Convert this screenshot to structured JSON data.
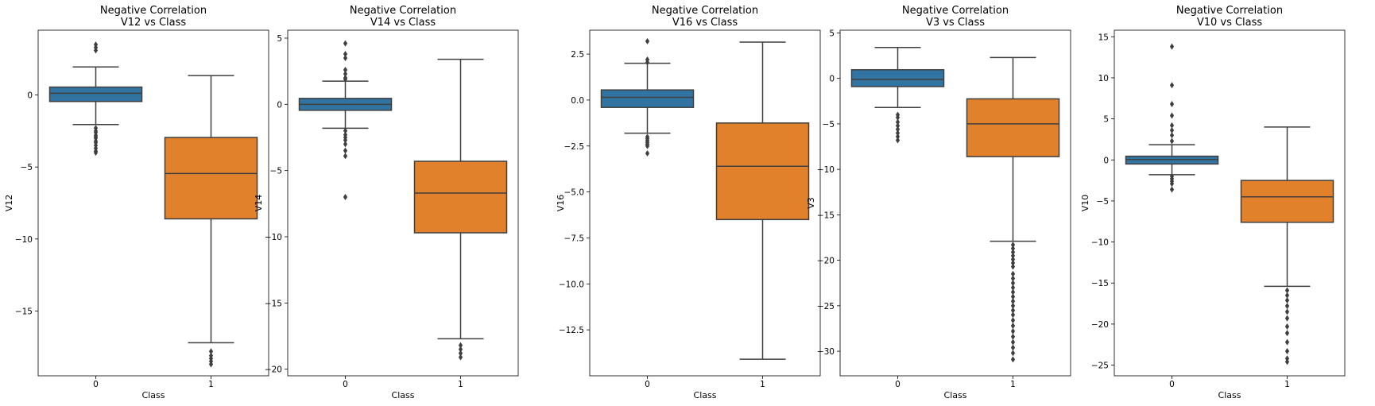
{
  "chart_data": [
    {
      "type": "box",
      "title": [
        "Negative Correlation",
        "V12 vs Class"
      ],
      "xlabel": "Class",
      "ylabel": "V12",
      "categories": [
        "0",
        "1"
      ],
      "ylim": [
        -19.5,
        4.5
      ],
      "yticks": [
        {
          "v": 0,
          "label": "0"
        },
        {
          "v": -5,
          "label": "−5"
        },
        {
          "v": -10,
          "label": "−10"
        },
        {
          "v": -15,
          "label": "−15"
        }
      ],
      "boxes": [
        {
          "category": "0",
          "color": "#3274a1",
          "whisker_low": -2.05,
          "q1": -0.45,
          "median": 0.12,
          "q3": 0.55,
          "whisker_high": 1.95,
          "outliers": [
            3.5,
            3.3,
            3.1,
            -2.3,
            -2.5,
            -2.6,
            -2.8,
            -2.9,
            -3.0,
            -3.2,
            -3.3,
            -3.5,
            -3.7,
            -3.9,
            -4.0
          ]
        },
        {
          "category": "1",
          "color": "#e1812c",
          "whisker_low": -17.2,
          "q1": -8.6,
          "median": -5.45,
          "q3": -2.95,
          "whisker_high": 1.35,
          "outliers": [
            -17.8,
            -18.1,
            -18.3,
            -18.5,
            -18.7
          ]
        }
      ]
    },
    {
      "type": "box",
      "title": [
        "Negative Correlation",
        "V14 vs Class"
      ],
      "xlabel": "Class",
      "ylabel": "V14",
      "categories": [
        "0",
        "1"
      ],
      "ylim": [
        -20.5,
        5.6
      ],
      "yticks": [
        {
          "v": 5,
          "label": "5"
        },
        {
          "v": 0,
          "label": "0"
        },
        {
          "v": -5,
          "label": "−5"
        },
        {
          "v": -10,
          "label": "−10"
        },
        {
          "v": -15,
          "label": "−15"
        },
        {
          "v": -20,
          "label": "−20"
        }
      ],
      "boxes": [
        {
          "category": "0",
          "color": "#3274a1",
          "whisker_low": -1.8,
          "q1": -0.45,
          "median": 0.0,
          "q3": 0.45,
          "whisker_high": 1.75,
          "outliers": [
            4.6,
            3.8,
            3.5,
            2.6,
            2.3,
            2.0,
            1.9,
            -2.0,
            -2.3,
            -2.5,
            -2.7,
            -3.0,
            -3.5,
            -3.9,
            -7.0
          ]
        },
        {
          "category": "1",
          "color": "#e1812c",
          "whisker_low": -17.7,
          "q1": -9.7,
          "median": -6.7,
          "q3": -4.3,
          "whisker_high": 3.4,
          "outliers": [
            -18.2,
            -18.5,
            -18.8,
            -19.1
          ]
        }
      ]
    },
    {
      "type": "box",
      "title": [
        "Negative Correlation",
        "V16 vs Class"
      ],
      "xlabel": "Class",
      "ylabel": "V16",
      "categories": [
        "0",
        "1"
      ],
      "ylim": [
        -15.0,
        3.8
      ],
      "yticks": [
        {
          "v": 2.5,
          "label": "2.5"
        },
        {
          "v": 0,
          "label": "0.0"
        },
        {
          "v": -2.5,
          "label": "−2.5"
        },
        {
          "v": -5,
          "label": "−5.0"
        },
        {
          "v": -7.5,
          "label": "−7.5"
        },
        {
          "v": -10,
          "label": "−10.0"
        },
        {
          "v": -12.5,
          "label": "−12.5"
        }
      ],
      "boxes": [
        {
          "category": "0",
          "color": "#3274a1",
          "whisker_low": -1.8,
          "q1": -0.4,
          "median": 0.15,
          "q3": 0.55,
          "whisker_high": 2.0,
          "outliers": [
            3.2,
            2.2,
            2.05,
            -2.0,
            -2.1,
            -2.2,
            -2.3,
            -2.4,
            -2.5,
            -2.9
          ]
        },
        {
          "category": "1",
          "color": "#e1812c",
          "whisker_low": -14.1,
          "q1": -6.5,
          "median": -3.6,
          "q3": -1.25,
          "whisker_high": 3.15,
          "outliers": []
        }
      ]
    },
    {
      "type": "box",
      "title": [
        "Negative Correlation",
        "V3 vs Class"
      ],
      "xlabel": "Class",
      "ylabel": "V3",
      "categories": [
        "0",
        "1"
      ],
      "ylim": [
        -32.7,
        5.3
      ],
      "yticks": [
        {
          "v": 5,
          "label": "5"
        },
        {
          "v": 0,
          "label": "0"
        },
        {
          "v": -5,
          "label": "−5"
        },
        {
          "v": -10,
          "label": "−10"
        },
        {
          "v": -15,
          "label": "−15"
        },
        {
          "v": -20,
          "label": "−20"
        },
        {
          "v": -25,
          "label": "−25"
        },
        {
          "v": -30,
          "label": "−30"
        }
      ],
      "boxes": [
        {
          "category": "0",
          "color": "#3274a1",
          "whisker_low": -3.2,
          "q1": -0.9,
          "median": -0.1,
          "q3": 0.95,
          "whisker_high": 3.4,
          "outliers": [
            -4.0,
            -4.3,
            -4.8,
            -5.2,
            -5.6,
            -6.0,
            -6.4,
            -6.8
          ]
        },
        {
          "category": "1",
          "color": "#e1812c",
          "whisker_low": -17.9,
          "q1": -8.6,
          "median": -5.0,
          "q3": -2.25,
          "whisker_high": 2.3,
          "outliers": [
            -18.3,
            -18.7,
            -19.1,
            -19.5,
            -19.9,
            -20.3,
            -20.7,
            -21.5,
            -22.0,
            -22.5,
            -23.0,
            -23.5,
            -24.0,
            -24.5,
            -25.0,
            -25.5,
            -26.0,
            -26.6,
            -27.2,
            -27.8,
            -28.4,
            -29.0,
            -29.6,
            -30.2,
            -30.9
          ]
        }
      ]
    },
    {
      "type": "box",
      "title": [
        "Negative Correlation",
        "V10 vs Class"
      ],
      "xlabel": "Class",
      "ylabel": "V10",
      "categories": [
        "0",
        "1"
      ],
      "ylim": [
        -26.3,
        15.8
      ],
      "yticks": [
        {
          "v": 15,
          "label": "15"
        },
        {
          "v": 10,
          "label": "10"
        },
        {
          "v": 5,
          "label": "5"
        },
        {
          "v": 0,
          "label": "0"
        },
        {
          "v": -5,
          "label": "−5"
        },
        {
          "v": -10,
          "label": "−10"
        },
        {
          "v": -15,
          "label": "−15"
        },
        {
          "v": -20,
          "label": "−20"
        },
        {
          "v": -25,
          "label": "−25"
        }
      ],
      "boxes": [
        {
          "category": "0",
          "color": "#3274a1",
          "whisker_low": -1.8,
          "q1": -0.5,
          "median": 0.05,
          "q3": 0.45,
          "whisker_high": 1.85,
          "outliers": [
            13.8,
            9.1,
            6.8,
            5.4,
            4.2,
            3.6,
            3.0,
            2.3,
            -2.0,
            -2.3,
            -2.6,
            -2.9,
            -3.6
          ]
        },
        {
          "category": "1",
          "color": "#e1812c",
          "whisker_low": -15.4,
          "q1": -7.6,
          "median": -4.5,
          "q3": -2.5,
          "whisker_high": 4.0,
          "outliers": [
            -15.9,
            -16.5,
            -17.1,
            -17.8,
            -18.5,
            -19.3,
            -20.3,
            -21.1,
            -22.2,
            -23.3,
            -24.2,
            -24.6
          ]
        }
      ]
    }
  ]
}
